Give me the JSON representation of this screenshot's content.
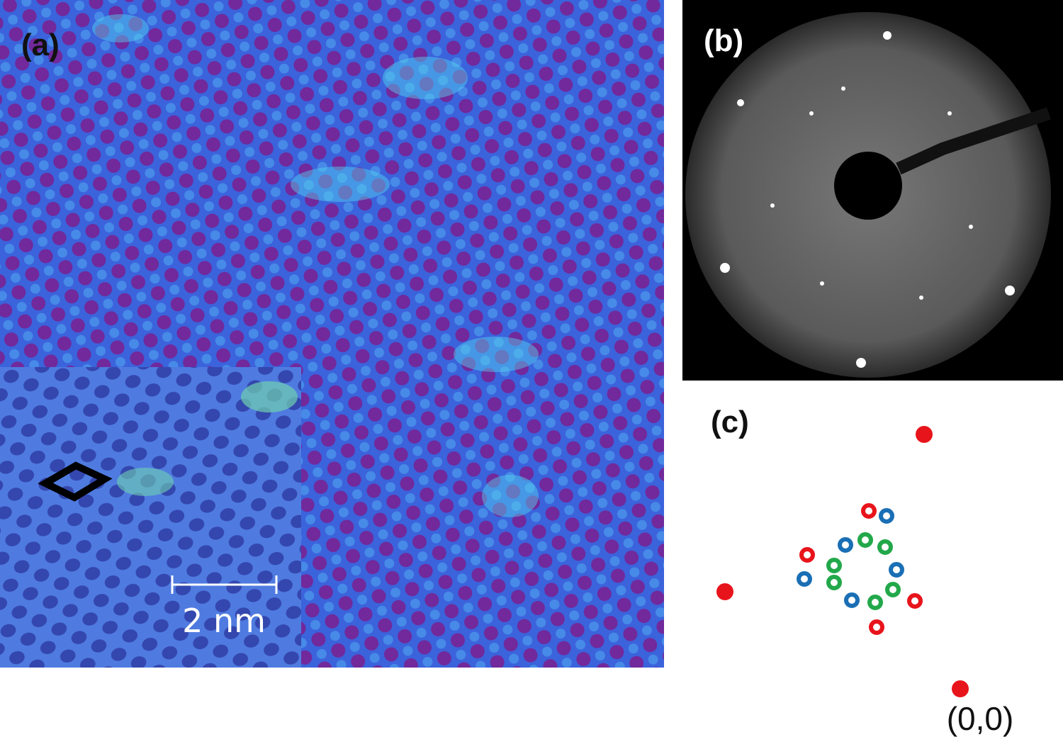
{
  "panels": [
    {
      "label": "(a)",
      "inset": {
        "scale_bar": "2 nm"
      }
    },
    {
      "label": "(b)"
    },
    {
      "label": "(c)",
      "origin_label": "(0,0)"
    }
  ]
}
